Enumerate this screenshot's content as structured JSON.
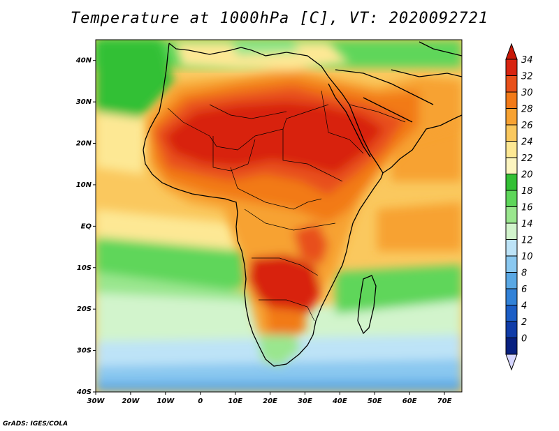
{
  "title": "Temperature at 1000hPa [C], VT: 2020092721",
  "credit": "GrADS: IGES/COLA",
  "map": {
    "lon_range": [
      -30,
      75
    ],
    "lat_range": [
      -40,
      45
    ],
    "lon_ticks": [
      {
        "value": -30,
        "label": "30W"
      },
      {
        "value": -20,
        "label": "20W"
      },
      {
        "value": -10,
        "label": "10W"
      },
      {
        "value": 0,
        "label": "0"
      },
      {
        "value": 10,
        "label": "10E"
      },
      {
        "value": 20,
        "label": "20E"
      },
      {
        "value": 30,
        "label": "30E"
      },
      {
        "value": 40,
        "label": "40E"
      },
      {
        "value": 50,
        "label": "50E"
      },
      {
        "value": 60,
        "label": "60E"
      },
      {
        "value": 70,
        "label": "70E"
      }
    ],
    "lat_ticks": [
      {
        "value": 40,
        "label": "40N"
      },
      {
        "value": 30,
        "label": "30N"
      },
      {
        "value": 20,
        "label": "20N"
      },
      {
        "value": 10,
        "label": "10N"
      },
      {
        "value": 0,
        "label": "EQ"
      },
      {
        "value": -10,
        "label": "10S"
      },
      {
        "value": -20,
        "label": "20S"
      },
      {
        "value": -30,
        "label": "30S"
      },
      {
        "value": -40,
        "label": "40S"
      }
    ]
  },
  "colorbar": {
    "levels": [
      "34",
      "32",
      "30",
      "28",
      "26",
      "24",
      "22",
      "20",
      "18",
      "16",
      "14",
      "12",
      "10",
      "8",
      "6",
      "4",
      "2",
      "0"
    ],
    "colors": [
      "#d82410",
      "#e8501a",
      "#f27a18",
      "#f7a232",
      "#fac85e",
      "#fde894",
      "#fcf5c0",
      "#33c035",
      "#5ed65a",
      "#9ae68e",
      "#d2f4cc",
      "#bde3f7",
      "#8ac8f0",
      "#5aa8e4",
      "#3282d8",
      "#1c5ec6",
      "#103ca8",
      "#082080"
    ],
    "top_color": "#c81808",
    "bottom_color": "#d6d6ff"
  }
}
